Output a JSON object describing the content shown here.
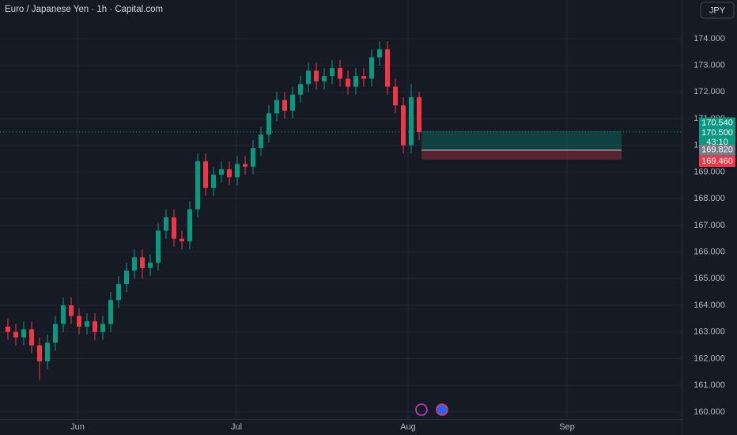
{
  "chart_data": {
    "type": "candlestick",
    "title": "Euro / Japanese Yen · 1h · Capital.com",
    "currency": "JPY",
    "x": [
      1,
      2,
      3,
      4,
      5,
      6,
      7,
      8,
      9,
      10,
      11,
      12,
      13,
      14,
      15,
      16,
      17,
      18,
      19,
      20,
      21,
      22,
      23,
      24,
      25,
      26,
      27,
      28,
      29,
      30,
      31,
      32,
      33,
      34,
      35,
      36,
      37,
      38,
      39,
      40,
      41,
      42,
      43,
      44,
      45,
      46,
      47,
      48,
      49,
      50,
      51,
      52,
      53
    ],
    "open": [
      163.2,
      163.0,
      162.8,
      163.1,
      162.5,
      161.9,
      162.6,
      163.3,
      164.0,
      163.6,
      163.2,
      163.4,
      163.0,
      163.3,
      164.2,
      164.8,
      165.3,
      165.8,
      165.4,
      165.6,
      166.8,
      167.3,
      166.5,
      166.4,
      167.6,
      169.4,
      168.4,
      168.9,
      169.1,
      168.8,
      169.3,
      169.2,
      169.9,
      170.4,
      171.2,
      171.7,
      171.3,
      171.9,
      172.3,
      172.8,
      172.4,
      172.6,
      172.9,
      172.5,
      172.2,
      172.6,
      172.5,
      173.3,
      173.6,
      172.2,
      171.5,
      170.0,
      171.8
    ],
    "high": [
      163.5,
      163.3,
      163.4,
      163.4,
      162.8,
      162.9,
      163.6,
      164.3,
      164.3,
      163.9,
      163.7,
      163.7,
      163.6,
      164.5,
      165.1,
      165.6,
      166.1,
      166.1,
      165.9,
      167.1,
      167.6,
      167.6,
      166.8,
      167.9,
      169.7,
      169.7,
      169.2,
      169.4,
      169.4,
      169.6,
      169.6,
      170.2,
      170.7,
      171.5,
      172.0,
      172.0,
      172.2,
      172.6,
      173.1,
      173.1,
      172.9,
      173.2,
      173.2,
      172.8,
      172.9,
      172.9,
      173.6,
      173.9,
      173.9,
      172.5,
      171.8,
      172.3,
      172.0
    ],
    "low": [
      162.7,
      162.5,
      162.5,
      162.2,
      161.2,
      161.6,
      162.3,
      163.0,
      163.3,
      162.9,
      162.9,
      162.7,
      162.7,
      163.0,
      163.9,
      164.5,
      165.0,
      165.0,
      165.1,
      165.3,
      166.5,
      166.2,
      166.1,
      166.1,
      167.3,
      168.1,
      168.1,
      168.6,
      168.5,
      168.5,
      168.9,
      168.9,
      169.6,
      170.1,
      170.9,
      171.0,
      171.0,
      171.6,
      172.0,
      172.1,
      172.1,
      172.3,
      172.2,
      171.9,
      171.9,
      172.2,
      172.2,
      173.0,
      171.9,
      171.2,
      169.7,
      169.7,
      170.2
    ],
    "close": [
      163.0,
      162.8,
      163.1,
      162.5,
      161.9,
      162.6,
      163.3,
      164.0,
      163.6,
      163.2,
      163.4,
      163.0,
      163.3,
      164.2,
      164.8,
      165.3,
      165.8,
      165.4,
      165.6,
      166.8,
      167.3,
      166.5,
      166.4,
      167.6,
      169.4,
      168.4,
      168.9,
      169.1,
      168.8,
      169.3,
      169.2,
      169.9,
      170.4,
      171.2,
      171.7,
      171.3,
      171.9,
      172.3,
      172.8,
      172.4,
      172.6,
      172.9,
      172.5,
      172.2,
      172.6,
      172.5,
      173.3,
      173.6,
      172.2,
      171.5,
      170.0,
      171.8,
      170.5
    ],
    "up_color": "#089981",
    "down_color": "#f23645",
    "xlim": [
      0,
      86.2
    ],
    "xticks": [
      {
        "value": 9.8,
        "label": "Jun"
      },
      {
        "value": 29.9,
        "label": "Jul"
      },
      {
        "value": 51.6,
        "label": "Aug"
      },
      {
        "value": 71.7,
        "label": "Sep"
      }
    ],
    "ylim": [
      159.73,
      175.45
    ],
    "yticks": [
      {
        "value": 160,
        "label": "160.000"
      },
      {
        "value": 161,
        "label": "161.000"
      },
      {
        "value": 162,
        "label": "162.000"
      },
      {
        "value": 163,
        "label": "163.000"
      },
      {
        "value": 164,
        "label": "164.000"
      },
      {
        "value": 165,
        "label": "165.000"
      },
      {
        "value": 166,
        "label": "166.000"
      },
      {
        "value": 167,
        "label": "167.000"
      },
      {
        "value": 168,
        "label": "168.000"
      },
      {
        "value": 169,
        "label": "169.000"
      },
      {
        "value": 170,
        "label": "170.000"
      },
      {
        "value": 171,
        "label": "171.000"
      },
      {
        "value": 172,
        "label": "172.000"
      },
      {
        "value": 173,
        "label": "173.000"
      },
      {
        "value": 174,
        "label": "174.000"
      }
    ],
    "grid": true,
    "position": {
      "x": [
        53.3,
        78.6
      ],
      "target": {
        "value": 170.54,
        "label": "170.540"
      },
      "entry": {
        "value": 169.82,
        "label": "169.820"
      },
      "stop": {
        "value": 169.46,
        "label": "169.460"
      }
    },
    "last_price": {
      "value": 170.5,
      "label": "170.500"
    },
    "countdown": "43:10"
  }
}
